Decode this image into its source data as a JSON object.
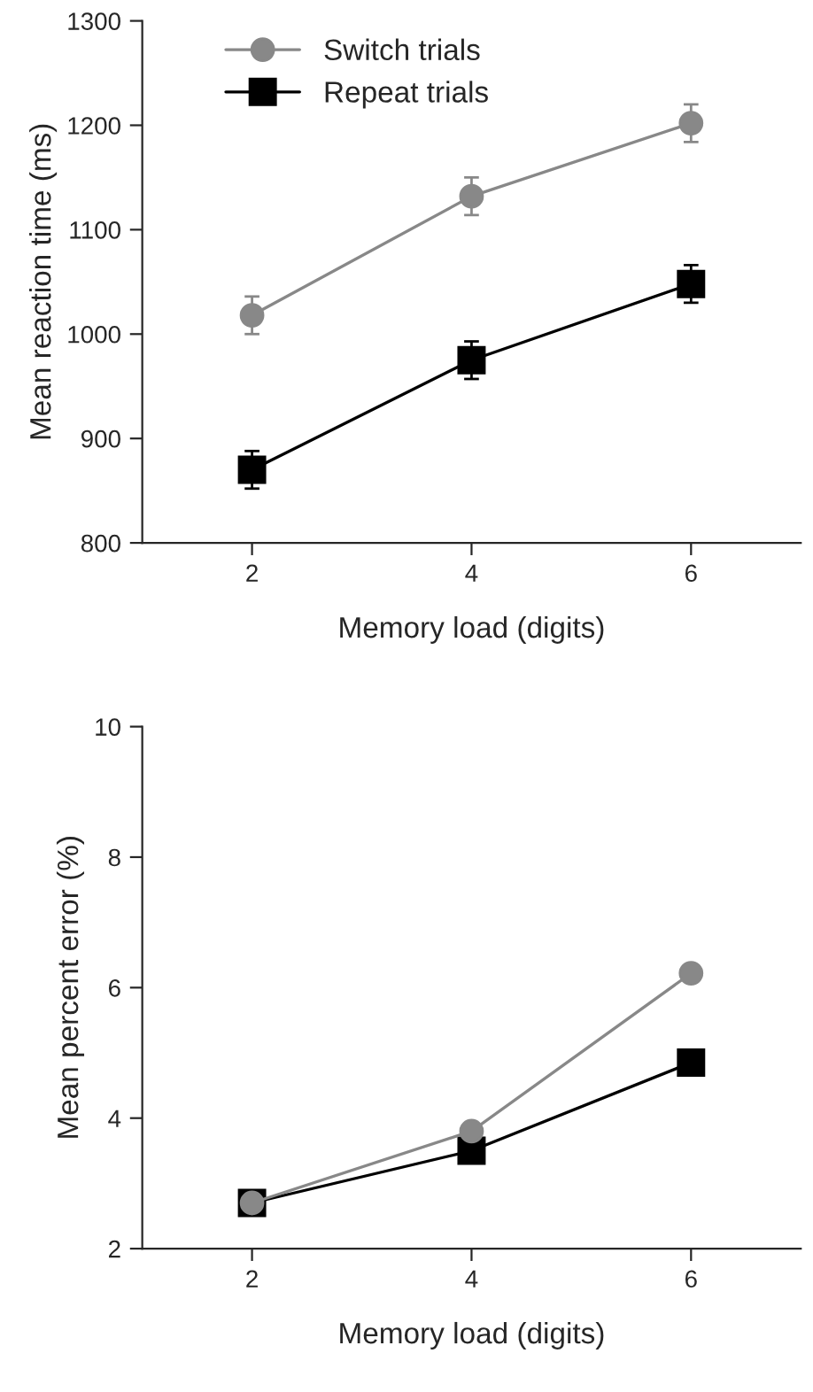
{
  "chart_data": [
    {
      "type": "line",
      "xlabel": "Memory load (digits)",
      "ylabel": "Mean reaction time (ms)",
      "x": [
        2,
        4,
        6
      ],
      "xlim": [
        1,
        7
      ],
      "xticks": [
        2,
        4,
        6
      ],
      "ylim": [
        800,
        1300
      ],
      "yticks": [
        800,
        900,
        1000,
        1100,
        1200,
        1300
      ],
      "grid": false,
      "legend": "top left",
      "series": [
        {
          "name": "Switch trials",
          "color": "#888888",
          "marker": "circle",
          "values": [
            1018,
            1132,
            1202
          ],
          "errors": [
            18,
            18,
            18
          ]
        },
        {
          "name": "Repeat trials",
          "color": "#000000",
          "marker": "square",
          "values": [
            870,
            975,
            1048
          ],
          "errors": [
            18,
            18,
            18
          ]
        }
      ]
    },
    {
      "type": "line",
      "xlabel": "Memory load (digits)",
      "ylabel": "Mean percent error (%)",
      "x": [
        2,
        4,
        6
      ],
      "xlim": [
        1,
        7
      ],
      "xticks": [
        2,
        4,
        6
      ],
      "ylim": [
        2,
        10
      ],
      "yticks": [
        2,
        4,
        6,
        8,
        10
      ],
      "grid": false,
      "legend": false,
      "series": [
        {
          "color": "#000000",
          "marker": "square",
          "values": [
            2.7,
            3.5,
            4.85
          ]
        },
        {
          "color": "#888888",
          "marker": "circle",
          "values": [
            2.7,
            3.8,
            6.22
          ]
        }
      ]
    }
  ]
}
